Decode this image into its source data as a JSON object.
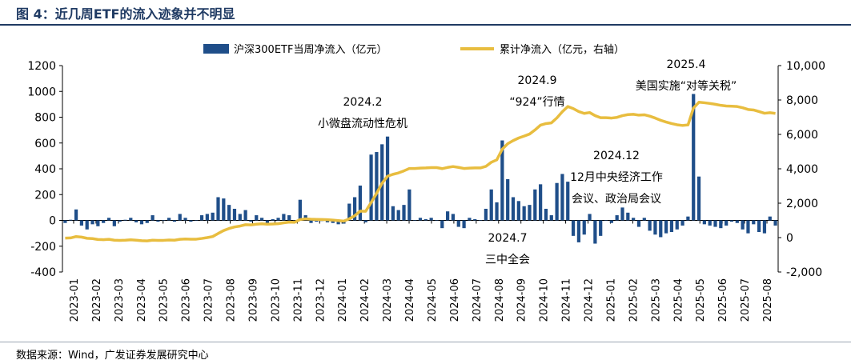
{
  "title": "图 4：近几周ETF的流入迹象并不明显",
  "source": "数据来源：Wind，广发证券发展研究中心",
  "colors": {
    "bar": "#1f4e89",
    "line": "#e8bd3f",
    "title": "#1f3a63"
  },
  "chart_data": {
    "type": "bar+line",
    "grid": false,
    "legend_position": "top",
    "series": [
      {
        "name": "沪深300ETF当周净流入（亿元）",
        "type": "bar",
        "axis": "left"
      },
      {
        "name": "累计净流入（亿元，右轴）",
        "type": "line",
        "axis": "right"
      }
    ],
    "y_left": {
      "lim": [
        -400,
        1200
      ],
      "ticks": [
        -400,
        -200,
        0,
        200,
        400,
        600,
        800,
        1000,
        1200
      ],
      "tick_labels": [
        "-400",
        "-200",
        "0",
        "200",
        "400",
        "600",
        "800",
        "1000",
        "1200"
      ]
    },
    "y_right": {
      "lim": [
        -2000,
        10000
      ],
      "ticks": [
        -2000,
        0,
        2000,
        4000,
        6000,
        8000,
        10000
      ],
      "tick_labels": [
        "-2,000",
        "0",
        "2,000",
        "4,000",
        "6,000",
        "8,000",
        "10,000"
      ]
    },
    "x_tick_labels": [
      "2023-01",
      "2023-02",
      "2023-03",
      "2023-04",
      "2023-05",
      "2023-06",
      "2023-07",
      "2023-08",
      "2023-09",
      "2023-10",
      "2023-11",
      "2023-12",
      "2024-01",
      "2024-02",
      "2024-03",
      "2024-04",
      "2024-05",
      "2024-06",
      "2024-07",
      "2024-08",
      "2024-09",
      "2024-10",
      "2024-11",
      "2024-12",
      "2025-01",
      "2025-02",
      "2025-03",
      "2025-04",
      "2025-05",
      "2025-06",
      "2025-07",
      "2025-08"
    ],
    "weekly_net_inflow": [
      -20,
      5,
      85,
      -40,
      -70,
      -30,
      -45,
      -20,
      20,
      -45,
      -10,
      5,
      20,
      -15,
      -30,
      -20,
      40,
      -10,
      0,
      20,
      -10,
      50,
      20,
      -10,
      0,
      40,
      50,
      60,
      180,
      170,
      120,
      90,
      50,
      80,
      -10,
      40,
      20,
      -20,
      10,
      20,
      50,
      40,
      -10,
      160,
      40,
      -20,
      -10,
      -5,
      -15,
      -20,
      -30,
      -25,
      130,
      180,
      270,
      -15,
      510,
      530,
      590,
      650,
      110,
      80,
      120,
      240,
      0,
      20,
      10,
      20,
      0,
      -60,
      70,
      50,
      -50,
      -60,
      20,
      10,
      0,
      90,
      240,
      140,
      620,
      320,
      180,
      150,
      110,
      120,
      240,
      280,
      90,
      40,
      290,
      360,
      300,
      -120,
      -170,
      -110,
      50,
      -180,
      -120,
      0,
      -20,
      40,
      100,
      60,
      20,
      -50,
      20,
      -80,
      -110,
      -130,
      -100,
      -90,
      -70,
      -40,
      30,
      980,
      340,
      -30,
      -40,
      -50,
      -60,
      -40,
      -10,
      -20,
      -70,
      -100,
      -30,
      -90,
      -100,
      30,
      -40
    ],
    "cumulative_net_inflow": [
      -30,
      -20,
      60,
      30,
      -40,
      -60,
      -110,
      -120,
      -100,
      -150,
      -160,
      -150,
      -130,
      -150,
      -180,
      -190,
      -150,
      -160,
      -160,
      -140,
      -150,
      -100,
      -80,
      -90,
      -90,
      -50,
      0,
      60,
      240,
      410,
      530,
      620,
      670,
      750,
      740,
      780,
      800,
      780,
      790,
      810,
      860,
      900,
      890,
      1050,
      1090,
      1070,
      1060,
      1050,
      1040,
      1020,
      990,
      960,
      1090,
      1270,
      1540,
      1530,
      2040,
      2570,
      3160,
      3570,
      3680,
      3760,
      3880,
      4020,
      4020,
      4040,
      4050,
      4070,
      4070,
      4010,
      4080,
      4130,
      4080,
      4020,
      4040,
      4050,
      4050,
      4140,
      4380,
      4520,
      5140,
      5460,
      5640,
      5790,
      5900,
      6020,
      6260,
      6540,
      6630,
      6670,
      6960,
      7320,
      7620,
      7500,
      7330,
      7220,
      7270,
      7090,
      6970,
      6970,
      6950,
      6990,
      7090,
      7150,
      7170,
      7120,
      7140,
      7060,
      6950,
      6820,
      6720,
      6630,
      6560,
      6520,
      6550,
      7530,
      7870,
      7840,
      7800,
      7750,
      7690,
      7650,
      7640,
      7620,
      7550,
      7450,
      7420,
      7330,
      7230,
      7260,
      7220
    ],
    "annotations": [
      {
        "lines": [
          "2024.2",
          "小微盘流动性危机"
        ]
      },
      {
        "lines": [
          "2024.9",
          "“924”行情"
        ]
      },
      {
        "lines": [
          "2025.4",
          "美国实施“对等关税”"
        ]
      },
      {
        "lines": [
          "2024.12",
          "12月中央经济工作",
          "会议、政治局会议"
        ]
      },
      {
        "lines": [
          "2024.7",
          "三中全会"
        ]
      }
    ]
  }
}
